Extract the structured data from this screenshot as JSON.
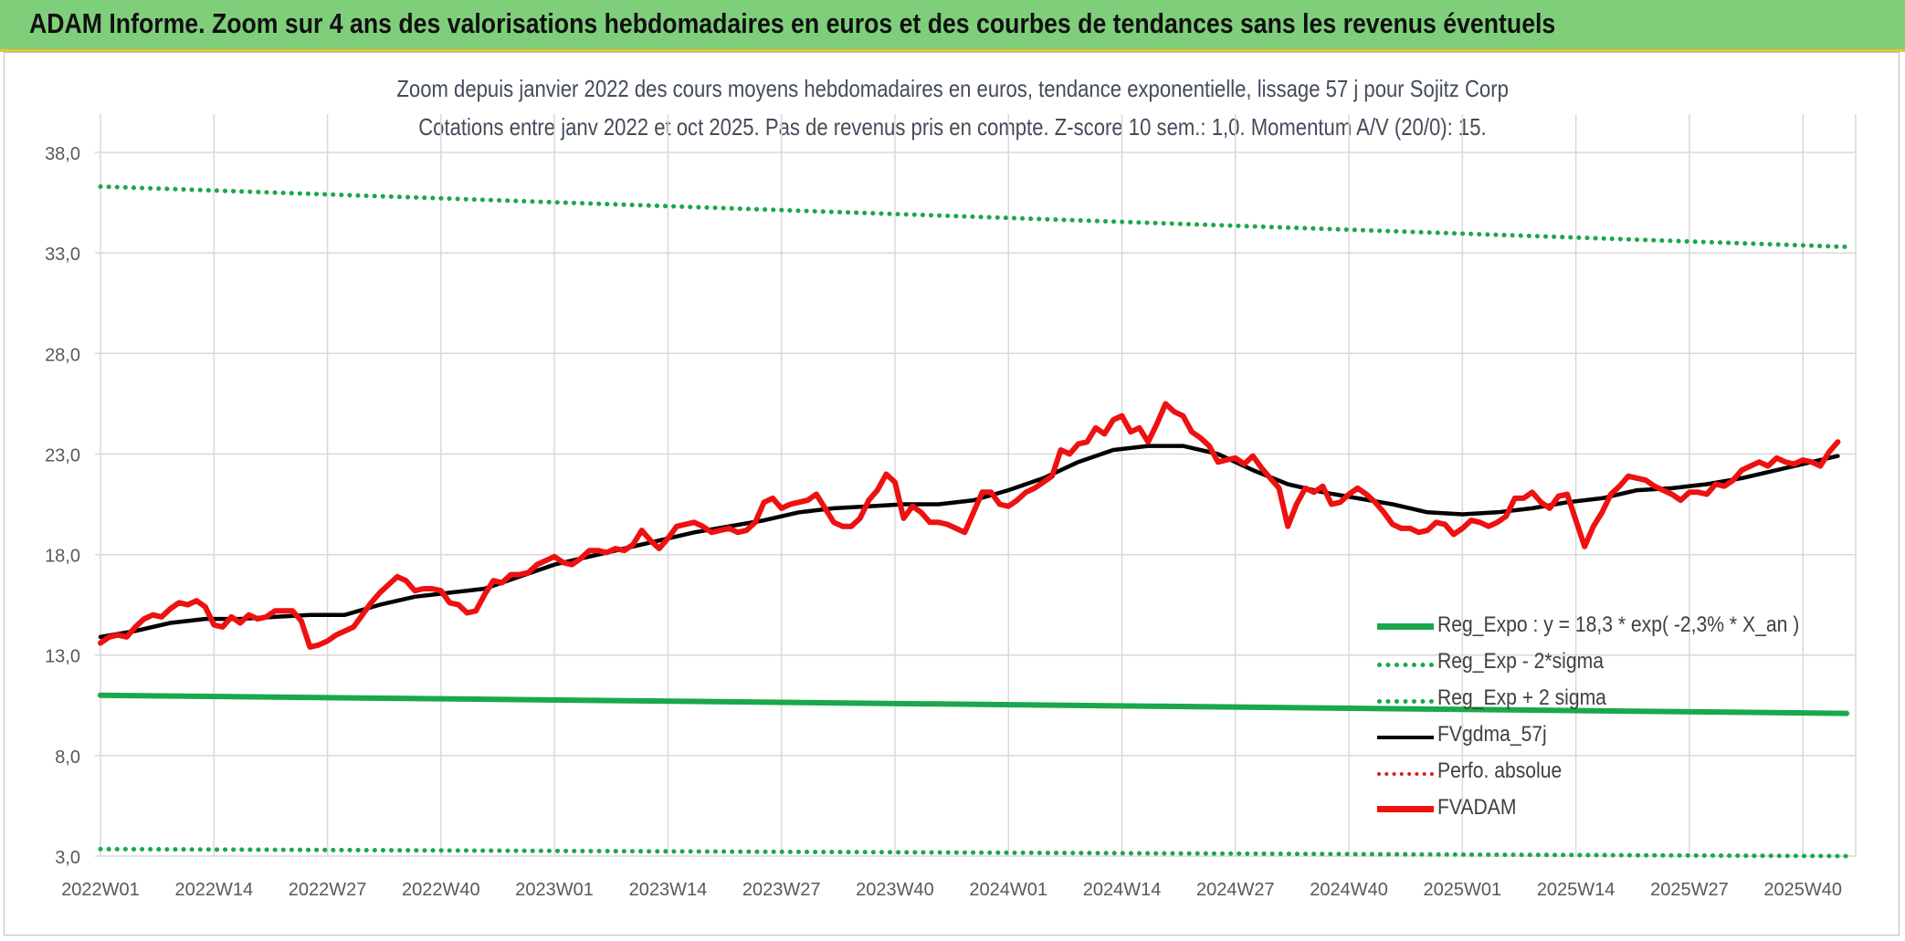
{
  "banner": {
    "title": "ADAM Informe. Zoom sur 4 ans des valorisations hebdomadaires en euros et des courbes de tendances sans les revenus éventuels"
  },
  "chart_data": {
    "type": "line",
    "title": "Zoom depuis janvier 2022 des cours moyens hebdomadaires en euros, tendance exponentielle, lissage 57 j pour Sojitz Corp",
    "subtitle": "Cotations entre janv 2022 et oct 2025. Pas de revenus pris en compte. Z-score 10 sem.: 1,0. Momentum A/V (20/0): 15.",
    "xlabel": "",
    "ylabel": "",
    "ylim": [
      3,
      40
    ],
    "yticks": [
      "3,0",
      "8,0",
      "13,0",
      "18,0",
      "23,0",
      "28,0",
      "33,0",
      "38,0"
    ],
    "ytick_values": [
      3,
      8,
      13,
      18,
      23,
      28,
      33,
      38
    ],
    "xticks": [
      "2022W01",
      "2022W14",
      "2022W27",
      "2022W40",
      "2023W01",
      "2023W14",
      "2023W27",
      "2023W40",
      "2024W01",
      "2024W14",
      "2024W27",
      "2024W40",
      "2025W01",
      "2025W14",
      "2025W27",
      "2025W40"
    ],
    "xtick_weeks": [
      0,
      13,
      26,
      39,
      52,
      65,
      78,
      91,
      104,
      117,
      130,
      143,
      156,
      169,
      182,
      195
    ],
    "x_range_weeks": [
      0,
      200
    ],
    "grid": true,
    "legend_position": "bottom-right",
    "series": [
      {
        "name": "Reg_Expo : y = 18,3 * exp( -2,3% *  X_an )",
        "style": "solid-thick",
        "color": "#1aa84a",
        "points": [
          [
            0,
            11.0
          ],
          [
            200,
            10.1
          ]
        ]
      },
      {
        "name": "Reg_Exp - 2*sigma",
        "style": "dotted",
        "color": "#1aa84a",
        "points": [
          [
            0,
            3.35
          ],
          [
            200,
            3.0
          ]
        ]
      },
      {
        "name": "Reg_Exp + 2 sigma",
        "style": "dotted",
        "color": "#1aa84a",
        "points": [
          [
            0,
            36.3
          ],
          [
            200,
            33.3
          ]
        ]
      },
      {
        "name": "FVgdma_57j",
        "style": "solid",
        "color": "#000000",
        "points": [
          [
            0,
            13.9
          ],
          [
            4,
            14.2
          ],
          [
            8,
            14.6
          ],
          [
            12,
            14.8
          ],
          [
            16,
            14.8
          ],
          [
            20,
            14.9
          ],
          [
            24,
            15.0
          ],
          [
            28,
            15.0
          ],
          [
            32,
            15.5
          ],
          [
            36,
            15.9
          ],
          [
            40,
            16.1
          ],
          [
            44,
            16.3
          ],
          [
            48,
            16.9
          ],
          [
            52,
            17.5
          ],
          [
            56,
            17.9
          ],
          [
            60,
            18.3
          ],
          [
            64,
            18.7
          ],
          [
            68,
            19.1
          ],
          [
            72,
            19.4
          ],
          [
            76,
            19.7
          ],
          [
            80,
            20.1
          ],
          [
            84,
            20.3
          ],
          [
            88,
            20.4
          ],
          [
            92,
            20.5
          ],
          [
            96,
            20.5
          ],
          [
            100,
            20.7
          ],
          [
            104,
            21.2
          ],
          [
            108,
            21.8
          ],
          [
            112,
            22.6
          ],
          [
            116,
            23.2
          ],
          [
            120,
            23.4
          ],
          [
            124,
            23.4
          ],
          [
            128,
            23.0
          ],
          [
            132,
            22.2
          ],
          [
            136,
            21.5
          ],
          [
            140,
            21.1
          ],
          [
            144,
            20.8
          ],
          [
            148,
            20.5
          ],
          [
            152,
            20.1
          ],
          [
            156,
            20.0
          ],
          [
            160,
            20.1
          ],
          [
            164,
            20.3
          ],
          [
            168,
            20.6
          ],
          [
            172,
            20.8
          ],
          [
            176,
            21.2
          ],
          [
            180,
            21.3
          ],
          [
            184,
            21.5
          ],
          [
            188,
            21.8
          ],
          [
            192,
            22.2
          ],
          [
            196,
            22.6
          ],
          [
            199,
            22.9
          ]
        ]
      },
      {
        "name": "Perfo. absolue",
        "style": "dotted",
        "color": "#e11b1b",
        "points": []
      },
      {
        "name": "FVADAM",
        "style": "solid-thick",
        "color": "#ee1111",
        "points": [
          [
            0,
            13.6
          ],
          [
            1,
            13.9
          ],
          [
            2,
            14.0
          ],
          [
            3,
            13.9
          ],
          [
            4,
            14.4
          ],
          [
            5,
            14.8
          ],
          [
            6,
            15.0
          ],
          [
            7,
            14.9
          ],
          [
            8,
            15.3
          ],
          [
            9,
            15.6
          ],
          [
            10,
            15.5
          ],
          [
            11,
            15.7
          ],
          [
            12,
            15.4
          ],
          [
            13,
            14.5
          ],
          [
            14,
            14.4
          ],
          [
            15,
            14.9
          ],
          [
            16,
            14.6
          ],
          [
            17,
            15.0
          ],
          [
            18,
            14.8
          ],
          [
            19,
            14.9
          ],
          [
            20,
            15.2
          ],
          [
            21,
            15.2
          ],
          [
            22,
            15.2
          ],
          [
            23,
            14.7
          ],
          [
            24,
            13.4
          ],
          [
            25,
            13.5
          ],
          [
            26,
            13.7
          ],
          [
            27,
            14.0
          ],
          [
            28,
            14.2
          ],
          [
            29,
            14.4
          ],
          [
            30,
            15.0
          ],
          [
            31,
            15.6
          ],
          [
            32,
            16.1
          ],
          [
            33,
            16.5
          ],
          [
            34,
            16.9
          ],
          [
            35,
            16.7
          ],
          [
            36,
            16.2
          ],
          [
            37,
            16.3
          ],
          [
            38,
            16.3
          ],
          [
            39,
            16.2
          ],
          [
            40,
            15.6
          ],
          [
            41,
            15.5
          ],
          [
            42,
            15.1
          ],
          [
            43,
            15.2
          ],
          [
            44,
            16.0
          ],
          [
            45,
            16.7
          ],
          [
            46,
            16.6
          ],
          [
            47,
            17.0
          ],
          [
            48,
            17.0
          ],
          [
            49,
            17.1
          ],
          [
            50,
            17.5
          ],
          [
            51,
            17.7
          ],
          [
            52,
            17.9
          ],
          [
            53,
            17.6
          ],
          [
            54,
            17.5
          ],
          [
            55,
            17.8
          ],
          [
            56,
            18.2
          ],
          [
            57,
            18.2
          ],
          [
            58,
            18.1
          ],
          [
            59,
            18.3
          ],
          [
            60,
            18.2
          ],
          [
            61,
            18.5
          ],
          [
            62,
            19.2
          ],
          [
            63,
            18.7
          ],
          [
            64,
            18.3
          ],
          [
            65,
            18.8
          ],
          [
            66,
            19.4
          ],
          [
            67,
            19.5
          ],
          [
            68,
            19.6
          ],
          [
            69,
            19.4
          ],
          [
            70,
            19.1
          ],
          [
            71,
            19.2
          ],
          [
            72,
            19.3
          ],
          [
            73,
            19.1
          ],
          [
            74,
            19.2
          ],
          [
            75,
            19.6
          ],
          [
            76,
            20.6
          ],
          [
            77,
            20.8
          ],
          [
            78,
            20.3
          ],
          [
            79,
            20.5
          ],
          [
            80,
            20.6
          ],
          [
            81,
            20.7
          ],
          [
            82,
            21.0
          ],
          [
            83,
            20.3
          ],
          [
            84,
            19.6
          ],
          [
            85,
            19.4
          ],
          [
            86,
            19.4
          ],
          [
            87,
            19.8
          ],
          [
            88,
            20.7
          ],
          [
            89,
            21.2
          ],
          [
            90,
            22.0
          ],
          [
            91,
            21.6
          ],
          [
            92,
            19.8
          ],
          [
            93,
            20.4
          ],
          [
            94,
            20.1
          ],
          [
            95,
            19.6
          ],
          [
            96,
            19.6
          ],
          [
            97,
            19.5
          ],
          [
            98,
            19.3
          ],
          [
            99,
            19.1
          ],
          [
            100,
            20.1
          ],
          [
            101,
            21.1
          ],
          [
            102,
            21.1
          ],
          [
            103,
            20.5
          ],
          [
            104,
            20.4
          ],
          [
            105,
            20.7
          ],
          [
            106,
            21.1
          ],
          [
            107,
            21.3
          ],
          [
            108,
            21.6
          ],
          [
            109,
            21.9
          ],
          [
            110,
            23.2
          ],
          [
            111,
            23.0
          ],
          [
            112,
            23.5
          ],
          [
            113,
            23.6
          ],
          [
            114,
            24.3
          ],
          [
            115,
            24.0
          ],
          [
            116,
            24.7
          ],
          [
            117,
            24.9
          ],
          [
            118,
            24.1
          ],
          [
            119,
            24.3
          ],
          [
            120,
            23.6
          ],
          [
            121,
            24.5
          ],
          [
            122,
            25.5
          ],
          [
            123,
            25.1
          ],
          [
            124,
            24.9
          ],
          [
            125,
            24.1
          ],
          [
            126,
            23.8
          ],
          [
            127,
            23.4
          ],
          [
            128,
            22.6
          ],
          [
            129,
            22.7
          ],
          [
            130,
            22.8
          ],
          [
            131,
            22.5
          ],
          [
            132,
            22.9
          ],
          [
            133,
            22.3
          ],
          [
            134,
            21.8
          ],
          [
            135,
            21.3
          ],
          [
            136,
            19.4
          ],
          [
            137,
            20.5
          ],
          [
            138,
            21.3
          ],
          [
            139,
            21.1
          ],
          [
            140,
            21.4
          ],
          [
            141,
            20.5
          ],
          [
            142,
            20.6
          ],
          [
            143,
            21.0
          ],
          [
            144,
            21.3
          ],
          [
            145,
            21.0
          ],
          [
            146,
            20.6
          ],
          [
            147,
            20.1
          ],
          [
            148,
            19.5
          ],
          [
            149,
            19.3
          ],
          [
            150,
            19.3
          ],
          [
            151,
            19.1
          ],
          [
            152,
            19.2
          ],
          [
            153,
            19.6
          ],
          [
            154,
            19.5
          ],
          [
            155,
            19.0
          ],
          [
            156,
            19.3
          ],
          [
            157,
            19.7
          ],
          [
            158,
            19.6
          ],
          [
            159,
            19.4
          ],
          [
            160,
            19.6
          ],
          [
            161,
            19.9
          ],
          [
            162,
            20.8
          ],
          [
            163,
            20.8
          ],
          [
            164,
            21.1
          ],
          [
            165,
            20.6
          ],
          [
            166,
            20.3
          ],
          [
            167,
            20.9
          ],
          [
            168,
            21.0
          ],
          [
            169,
            19.7
          ],
          [
            170,
            18.4
          ],
          [
            171,
            19.4
          ],
          [
            172,
            20.1
          ],
          [
            173,
            21.0
          ],
          [
            174,
            21.4
          ],
          [
            175,
            21.9
          ],
          [
            176,
            21.8
          ],
          [
            177,
            21.7
          ],
          [
            178,
            21.4
          ],
          [
            179,
            21.2
          ],
          [
            180,
            21.0
          ],
          [
            181,
            20.7
          ],
          [
            182,
            21.1
          ],
          [
            183,
            21.1
          ],
          [
            184,
            21.0
          ],
          [
            185,
            21.5
          ],
          [
            186,
            21.4
          ],
          [
            187,
            21.7
          ],
          [
            188,
            22.2
          ],
          [
            189,
            22.4
          ],
          [
            190,
            22.6
          ],
          [
            191,
            22.4
          ],
          [
            192,
            22.8
          ],
          [
            193,
            22.6
          ],
          [
            194,
            22.5
          ],
          [
            195,
            22.7
          ],
          [
            196,
            22.6
          ],
          [
            197,
            22.4
          ],
          [
            198,
            23.1
          ],
          [
            199,
            23.6
          ]
        ]
      }
    ]
  }
}
